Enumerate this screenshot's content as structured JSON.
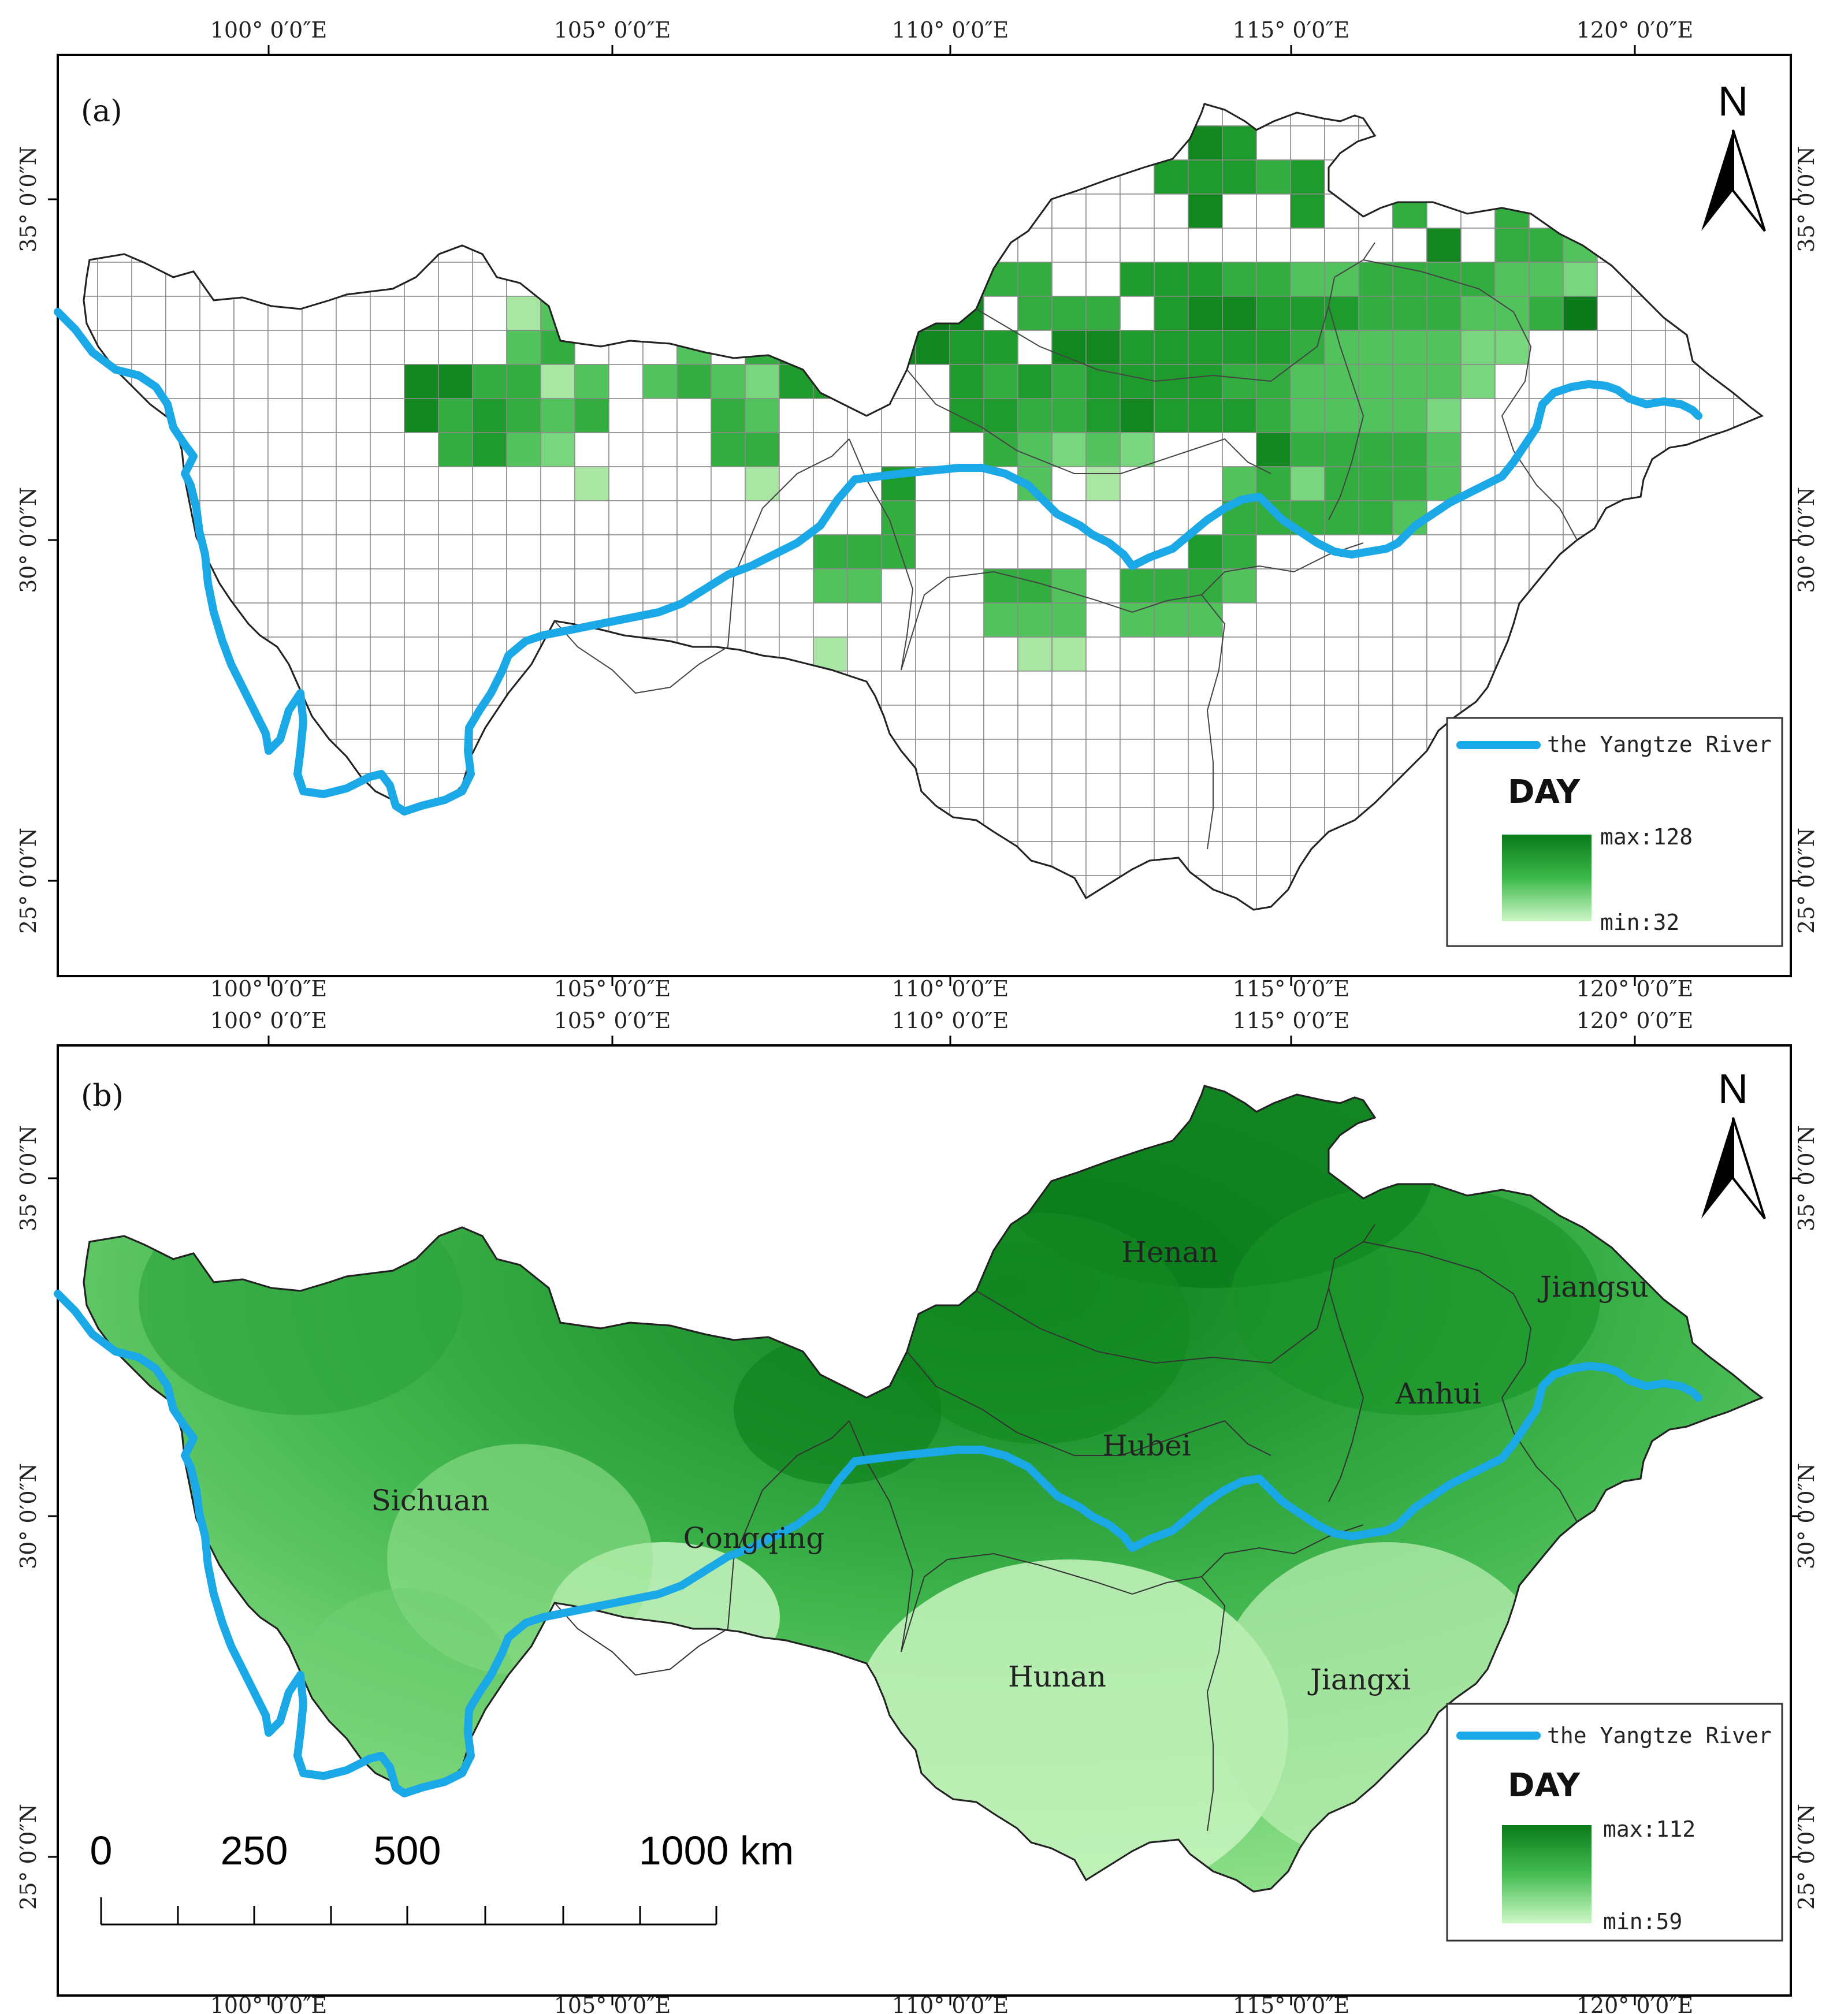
{
  "panel_a": {
    "label": "(a)",
    "north": "N",
    "lon_labels": [
      "100° 0′0″E",
      "105° 0′0″E",
      "110° 0′0″E",
      "115° 0′0″E",
      "120° 0′0″E"
    ],
    "lat_labels": [
      "35° 0′0″N",
      "30° 0′0″N",
      "25° 0′0″N"
    ],
    "legend": {
      "river_label": "the Yangtze River",
      "title": "DAY",
      "max_label": "max:128",
      "min_label": "min:32",
      "max_value": 128,
      "min_value": 32
    }
  },
  "panel_b": {
    "label": "(b)",
    "north": "N",
    "lon_labels": [
      "100° 0′0″E",
      "105° 0′0″E",
      "110° 0′0″E",
      "115° 0′0″E",
      "120° 0′0″E"
    ],
    "lat_labels": [
      "35° 0′0″N",
      "30° 0′0″N",
      "25° 0′0″N"
    ],
    "provinces": [
      "Henan",
      "Jiangsu",
      "Anhui",
      "Hubei",
      "Sichuan",
      "Congqing",
      "Hunan",
      "Jiangxi"
    ],
    "legend": {
      "river_label": "the Yangtze River",
      "title": "DAY",
      "max_label": "max:112",
      "min_label": "min:59",
      "max_value": 112,
      "min_value": 59
    },
    "scale_bar": {
      "labels": [
        "0",
        "250",
        "500",
        "1000 km"
      ]
    }
  },
  "colors": {
    "dark_green": "#0a7a1a",
    "mid_green": "#4cc25a",
    "light_green": "#c8f5c0",
    "river": "#1aa8e6",
    "border": "#333333",
    "grid": "#888888"
  }
}
